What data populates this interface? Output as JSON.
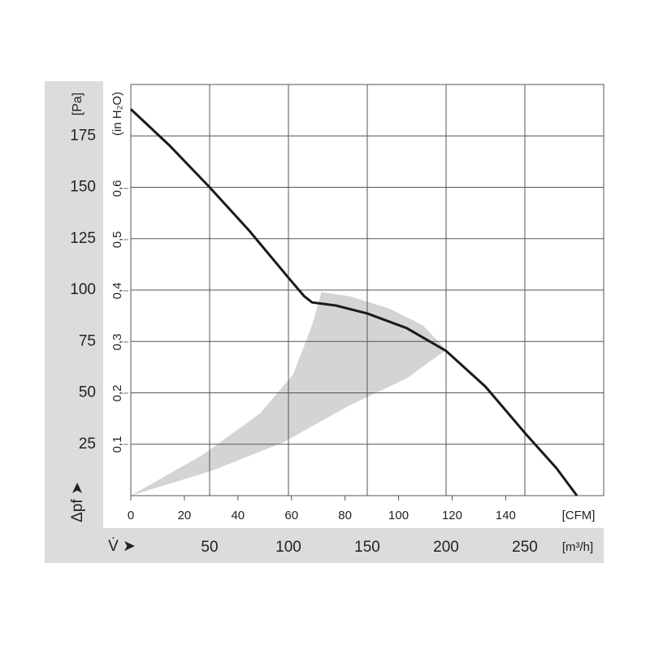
{
  "chart_data": {
    "type": "line",
    "y_unit": "[Pa]",
    "y2_unit": "(in H₂O)",
    "y_label": "Δpf ➤",
    "x_label": "V̇ ➤",
    "x_unit": "[m³/h]",
    "x2_unit": "[CFM]",
    "xlim": [
      0,
      300
    ],
    "xticks": [
      50,
      100,
      150,
      200,
      250
    ],
    "x2lim": [
      0,
      176.6
    ],
    "x2ticks": [
      0,
      20,
      40,
      60,
      80,
      100,
      120,
      140
    ],
    "ylim": [
      0,
      200
    ],
    "yticks": [
      25,
      50,
      75,
      100,
      125,
      150,
      175
    ],
    "y2lim": [
      0,
      0.803
    ],
    "y2ticks": [
      {
        "value": 0.1,
        "label": "0,1"
      },
      {
        "value": 0.2,
        "label": "0,2"
      },
      {
        "value": 0.3,
        "label": "0,3"
      },
      {
        "value": 0.4,
        "label": "0,4"
      },
      {
        "value": 0.5,
        "label": "0,5"
      },
      {
        "value": 0.6,
        "label": "0,6"
      }
    ],
    "grid": true,
    "x": [
      0,
      25,
      50,
      75,
      100,
      110,
      115,
      130,
      150,
      175,
      200,
      225,
      250,
      270,
      283
    ],
    "series": [
      {
        "color": "#1a1a1a",
        "values": [
          188,
          170,
          150,
          129,
          106,
          97,
          94,
          92.5,
          88.6,
          81.5,
          70.4,
          53,
          30.5,
          13.4,
          0
        ]
      }
    ],
    "area": {
      "color": "#d4d4d4",
      "x": [
        0,
        46,
        82,
        103,
        115,
        121,
        139,
        164,
        185,
        200,
        175,
        139,
        97,
        51
      ],
      "y": [
        0,
        20,
        40,
        59,
        83,
        99,
        97,
        91,
        83,
        71,
        57,
        44,
        26,
        12
      ]
    }
  }
}
